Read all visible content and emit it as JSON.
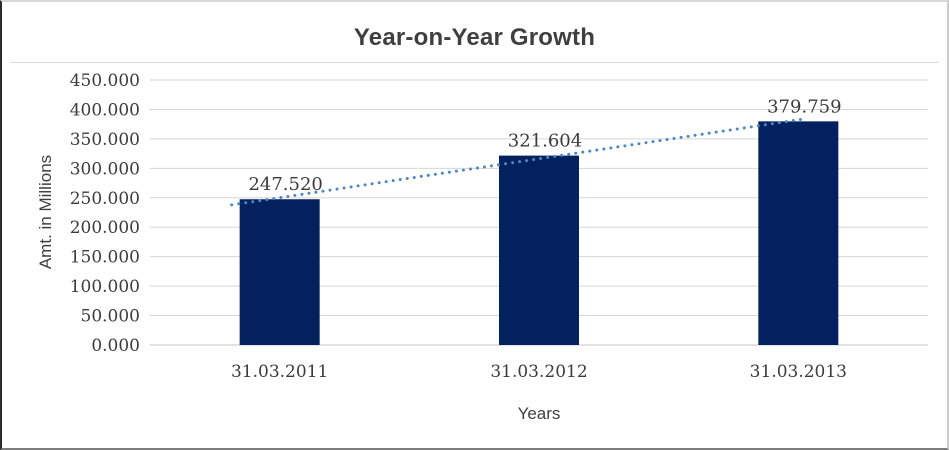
{
  "chart_data": {
    "type": "bar",
    "title": "Year-on-Year Growth",
    "xlabel": "Years",
    "ylabel": "Amt. in Millions",
    "categories": [
      "31.03.2011",
      "31.03.2012",
      "31.03.2013"
    ],
    "values": [
      247.52,
      321.604,
      379.759
    ],
    "data_labels": [
      "247.520",
      "321.604",
      "379.759"
    ],
    "ylim": [
      0,
      450
    ],
    "ytick_step": 50,
    "ytick_labels": [
      "450.000",
      "400.000",
      "350.000",
      "300.000",
      "250.000",
      "200.000",
      "150.000",
      "100.000",
      "50.000",
      "0.000"
    ],
    "grid": true,
    "legend": "none",
    "trendline": {
      "type": "linear",
      "style": "dotted"
    },
    "colors": {
      "bar": "#03215F",
      "trendline": "#4E86C4",
      "gridline": "#D6D6D6",
      "baseline": "#C4C4C4",
      "axis_text": "#3C3C3C",
      "title_text": "#3F3F3F"
    }
  }
}
